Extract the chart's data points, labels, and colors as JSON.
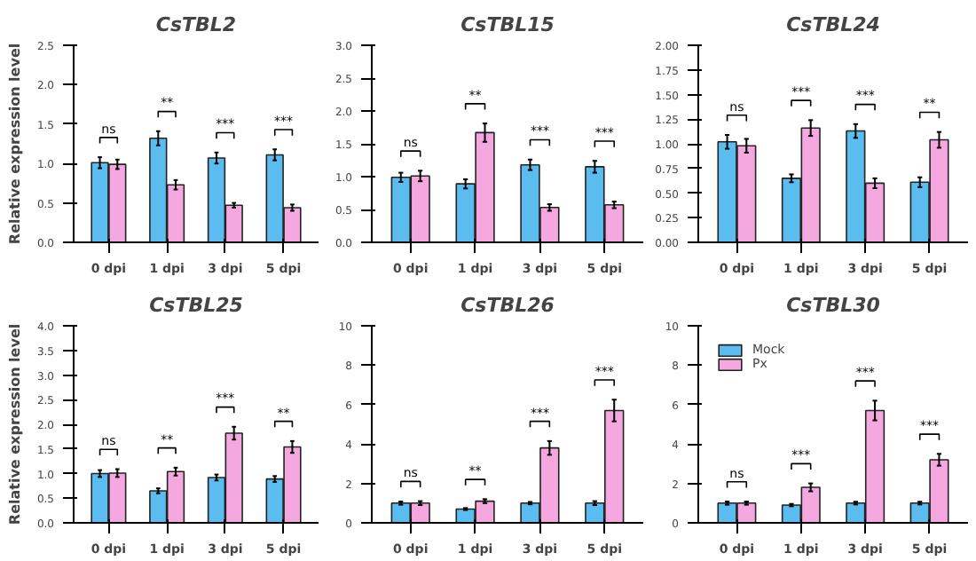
{
  "chart_data": [
    {
      "type": "bar",
      "title": "CsTBL2",
      "ylabel": "Relative expression level",
      "categories": [
        "0 dpi",
        "1 dpi",
        "3 dpi",
        "5 dpi"
      ],
      "ylim": [
        0,
        2.5
      ],
      "yticks": [
        {
          "value": 0,
          "label": "0.0"
        },
        {
          "value": 0.5,
          "label": "0.5"
        },
        {
          "value": 1,
          "label": "1.0"
        },
        {
          "value": 1.5,
          "label": "1.5"
        },
        {
          "value": 2,
          "label": "2.0"
        },
        {
          "value": 2.5,
          "label": "2.5"
        }
      ],
      "grid": false,
      "series": [
        {
          "color": "#5bbcf0",
          "values": [
            1.01,
            1.32,
            1.07,
            1.11
          ],
          "errors": [
            0.07,
            0.09,
            0.07,
            0.07
          ]
        },
        {
          "color": "#f5a8e0",
          "values": [
            0.99,
            0.73,
            0.47,
            0.44
          ],
          "errors": [
            0.06,
            0.06,
            0.03,
            0.04
          ]
        }
      ],
      "annotations": [
        "ns",
        "**",
        "***",
        "***"
      ]
    },
    {
      "type": "bar",
      "title": "CsTBL15",
      "categories": [
        "0 dpi",
        "1 dpi",
        "3 dpi",
        "5 dpi"
      ],
      "ylim": [
        0,
        3
      ],
      "yticks": [
        {
          "value": 0,
          "label": "0.0"
        },
        {
          "value": 0.5,
          "label": "0.5"
        },
        {
          "value": 1,
          "label": "1.0"
        },
        {
          "value": 1.5,
          "label": "1.5"
        },
        {
          "value": 2,
          "label": "2.0"
        },
        {
          "value": 2.5,
          "label": "2.5"
        },
        {
          "value": 3,
          "label": "3.0"
        }
      ],
      "grid": false,
      "series": [
        {
          "color": "#5bbcf0",
          "values": [
            0.99,
            0.89,
            1.18,
            1.15
          ],
          "errors": [
            0.07,
            0.07,
            0.08,
            0.09
          ]
        },
        {
          "color": "#f5a8e0",
          "values": [
            1.01,
            1.67,
            0.53,
            0.57
          ],
          "errors": [
            0.08,
            0.14,
            0.05,
            0.05
          ]
        }
      ],
      "annotations": [
        "ns",
        "**",
        "***",
        "***"
      ]
    },
    {
      "type": "bar",
      "title": "CsTBL24",
      "categories": [
        "0 dpi",
        "1 dpi",
        "3 dpi",
        "5 dpi"
      ],
      "ylim": [
        0,
        2
      ],
      "yticks": [
        {
          "value": 0,
          "label": "0.00"
        },
        {
          "value": 0.25,
          "label": "0.25"
        },
        {
          "value": 0.5,
          "label": "0.50"
        },
        {
          "value": 0.75,
          "label": "0.75"
        },
        {
          "value": 1,
          "label": "1.00"
        },
        {
          "value": 1.25,
          "label": "1.25"
        },
        {
          "value": 1.5,
          "label": "1.50"
        },
        {
          "value": 1.75,
          "label": "1.75"
        },
        {
          "value": 2,
          "label": "2.00"
        }
      ],
      "grid": false,
      "series": [
        {
          "color": "#5bbcf0",
          "values": [
            1.02,
            0.65,
            1.13,
            0.61
          ],
          "errors": [
            0.07,
            0.04,
            0.07,
            0.05
          ]
        },
        {
          "color": "#f5a8e0",
          "values": [
            0.98,
            1.16,
            0.6,
            1.04
          ],
          "errors": [
            0.07,
            0.08,
            0.05,
            0.08
          ]
        }
      ],
      "annotations": [
        "ns",
        "***",
        "***",
        "**"
      ]
    },
    {
      "type": "bar",
      "title": "CsTBL25",
      "ylabel": "Relative expression level",
      "categories": [
        "0 dpi",
        "1 dpi",
        "3 dpi",
        "5 dpi"
      ],
      "ylim": [
        0,
        4
      ],
      "yticks": [
        {
          "value": 0,
          "label": "0.0"
        },
        {
          "value": 0.5,
          "label": "0.5"
        },
        {
          "value": 1,
          "label": "1.0"
        },
        {
          "value": 1.5,
          "label": "1.5"
        },
        {
          "value": 2,
          "label": "2.0"
        },
        {
          "value": 2.5,
          "label": "2.5"
        },
        {
          "value": 3,
          "label": "3.0"
        },
        {
          "value": 3.5,
          "label": "3.5"
        },
        {
          "value": 4,
          "label": "4.0"
        }
      ],
      "grid": false,
      "series": [
        {
          "color": "#5bbcf0",
          "values": [
            1.0,
            0.65,
            0.92,
            0.89
          ],
          "errors": [
            0.07,
            0.05,
            0.06,
            0.06
          ]
        },
        {
          "color": "#f5a8e0",
          "values": [
            1.01,
            1.04,
            1.82,
            1.54
          ],
          "errors": [
            0.08,
            0.08,
            0.13,
            0.12
          ]
        }
      ],
      "annotations": [
        "ns",
        "**",
        "***",
        "**"
      ]
    },
    {
      "type": "bar",
      "title": "CsTBL26",
      "categories": [
        "0 dpi",
        "1 dpi",
        "3 dpi",
        "5 dpi"
      ],
      "ylim": [
        0,
        10
      ],
      "yticks": [
        0,
        2,
        4,
        6,
        8,
        10
      ],
      "grid": false,
      "series": [
        {
          "color": "#5bbcf0",
          "values": [
            1.0,
            0.7,
            1.0,
            1.0
          ],
          "errors": [
            0.08,
            0.05,
            0.06,
            0.1
          ]
        },
        {
          "color": "#f5a8e0",
          "values": [
            1.0,
            1.1,
            3.8,
            5.7
          ],
          "errors": [
            0.1,
            0.1,
            0.35,
            0.55
          ]
        }
      ],
      "annotations": [
        "ns",
        "**",
        "***",
        "***"
      ]
    },
    {
      "type": "bar",
      "title": "CsTBL30",
      "categories": [
        "0 dpi",
        "1 dpi",
        "3 dpi",
        "5 dpi"
      ],
      "ylim": [
        0,
        10
      ],
      "yticks": [
        0,
        2,
        4,
        6,
        8,
        10
      ],
      "grid": false,
      "legend": "top left",
      "series": [
        {
          "name": "Mock",
          "color": "#5bbcf0",
          "values": [
            1.0,
            0.9,
            1.0,
            1.0
          ],
          "errors": [
            0.08,
            0.06,
            0.07,
            0.07
          ]
        },
        {
          "name": "Px",
          "color": "#f5a8e0",
          "values": [
            1.0,
            1.8,
            5.7,
            3.2
          ],
          "errors": [
            0.08,
            0.2,
            0.5,
            0.3
          ]
        }
      ],
      "annotations": [
        "ns",
        "***",
        "***",
        "***"
      ]
    }
  ]
}
